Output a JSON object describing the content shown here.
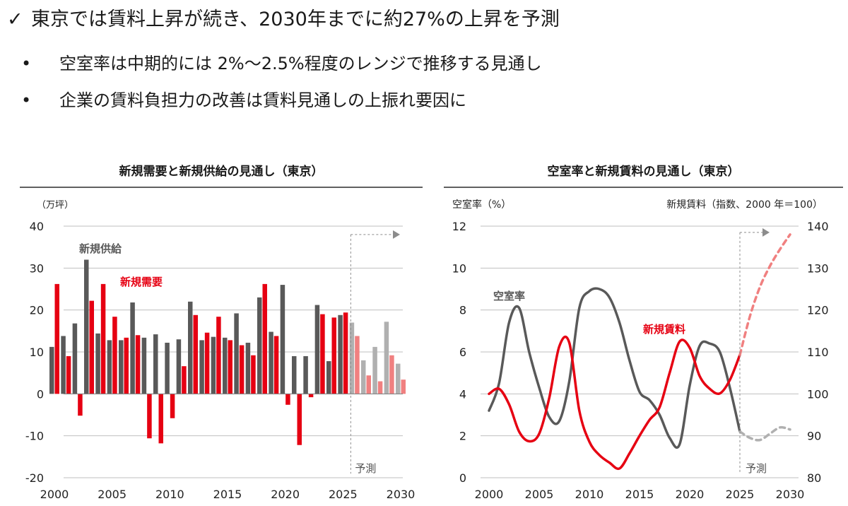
{
  "header": {
    "check_glyph": "✓",
    "headline": "東京では賃料上昇が続き、2030年までに約27%の上昇を予測",
    "bullet_glyph": "•",
    "bullets": [
      "空室率は中期的には 2%～2.5%程度のレンジで推移する見通し",
      "企業の賃料負担力の改善は賃料見通しの上振れ要因に"
    ]
  },
  "colors": {
    "supply": "#595959",
    "demand": "#e60012",
    "supply_forecast": "#b0b0b0",
    "demand_forecast": "#f08080",
    "vacancy": "#595959",
    "rent": "#e60012",
    "vacancy_forecast": "#b0b0b0",
    "rent_forecast": "#f08080",
    "grid": "#bfbfbf",
    "axis": "#7f7f7f"
  },
  "chart_data": [
    {
      "type": "bar",
      "title": "新規需要と新規供給の見通し（東京）",
      "unit_label": "（万坪）",
      "ylim": [
        -20,
        40
      ],
      "yticks": [
        40,
        30,
        20,
        10,
        0,
        -10,
        -20
      ],
      "x_range": [
        2000,
        2030
      ],
      "xticks": [
        2000,
        2005,
        2010,
        2015,
        2020,
        2025,
        2030
      ],
      "grid": true,
      "forecast_from": 2025,
      "forecast_label": "予測",
      "categories": [
        2000,
        2001,
        2002,
        2003,
        2004,
        2005,
        2006,
        2007,
        2008,
        2009,
        2010,
        2011,
        2012,
        2013,
        2014,
        2015,
        2016,
        2017,
        2018,
        2019,
        2020,
        2021,
        2022,
        2023,
        2024,
        2025,
        2026,
        2027,
        2028,
        2029,
        2030
      ],
      "series": [
        {
          "name": "新規供給",
          "values": [
            11.2,
            13.8,
            16.8,
            32.0,
            14.4,
            12.8,
            12.8,
            21.8,
            13.4,
            14.2,
            12.2,
            13.0,
            22.0,
            12.8,
            13.6,
            13.4,
            19.2,
            12.2,
            23.0,
            14.8,
            26.0,
            9.0,
            9.0,
            21.2,
            7.8,
            18.8,
            17.0,
            8.0,
            11.2,
            17.2,
            7.2
          ]
        },
        {
          "name": "新規需要",
          "values": [
            26.2,
            9.0,
            -5.2,
            22.2,
            26.2,
            18.4,
            13.4,
            14.0,
            -10.6,
            -11.8,
            -5.8,
            6.6,
            18.8,
            14.6,
            18.4,
            12.8,
            11.6,
            9.2,
            26.2,
            13.8,
            -2.6,
            -12.2,
            -0.8,
            19.0,
            18.2,
            19.4,
            13.8,
            4.4,
            3.0,
            9.2,
            3.4
          ]
        }
      ]
    },
    {
      "type": "line",
      "title": "空室率と新規賃料の見通し（東京）",
      "y_label": "空室率（%）",
      "y2_label": "新規賃料（指数、2000 年＝100）",
      "ylim": [
        0,
        12
      ],
      "yticks": [
        12,
        10,
        8,
        6,
        4,
        2,
        0
      ],
      "y2lim": [
        80,
        140
      ],
      "y2ticks": [
        140,
        130,
        120,
        110,
        100,
        90,
        80
      ],
      "x_range": [
        2000,
        2030
      ],
      "xticks": [
        2000,
        2005,
        2010,
        2015,
        2020,
        2025,
        2030
      ],
      "grid": true,
      "forecast_from": 2025,
      "forecast_label": "予測",
      "series": [
        {
          "name": "空室率",
          "axis": "left",
          "x": [
            2000,
            2001,
            2002,
            2003,
            2004,
            2005,
            2006,
            2007,
            2008,
            2009,
            2010,
            2011,
            2012,
            2013,
            2014,
            2015,
            2016,
            2017,
            2018,
            2019,
            2020,
            2021,
            2022,
            2023,
            2024,
            2025
          ],
          "y": [
            3.2,
            4.5,
            7.4,
            8.1,
            6.0,
            4.3,
            2.9,
            2.7,
            4.6,
            8.1,
            8.9,
            9.0,
            8.6,
            7.4,
            5.6,
            4.1,
            3.7,
            3.0,
            1.9,
            1.6,
            4.4,
            6.3,
            6.4,
            6.0,
            4.3,
            2.2
          ]
        },
        {
          "axis": "left",
          "forecast": true,
          "x": [
            2025,
            2026,
            2027,
            2028,
            2029,
            2030
          ],
          "y": [
            2.2,
            1.9,
            1.8,
            2.1,
            2.4,
            2.3
          ]
        },
        {
          "name": "新規賃料",
          "axis": "right",
          "x": [
            2000,
            2001,
            2002,
            2003,
            2004,
            2005,
            2006,
            2007,
            2008,
            2009,
            2010,
            2011,
            2012,
            2013,
            2014,
            2015,
            2016,
            2017,
            2018,
            2019,
            2020,
            2021,
            2022,
            2023,
            2024,
            2025
          ],
          "y": [
            100.0,
            101.2,
            97.5,
            91.0,
            88.7,
            90.5,
            99.0,
            111.3,
            112.2,
            96.0,
            88.6,
            85.4,
            83.6,
            82.2,
            85.8,
            90.0,
            93.8,
            96.8,
            105.0,
            112.5,
            111.0,
            104.2,
            101.2,
            100.1,
            103.3,
            109.3
          ]
        },
        {
          "axis": "right",
          "forecast": true,
          "x": [
            2025,
            2026,
            2027,
            2028,
            2029,
            2030
          ],
          "y": [
            109.3,
            118.5,
            125.5,
            130.5,
            134.5,
            138.0
          ]
        }
      ]
    }
  ]
}
